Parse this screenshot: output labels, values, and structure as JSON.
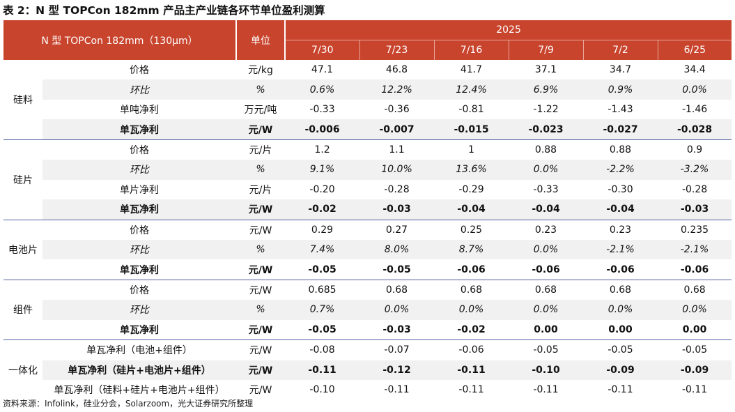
{
  "title": "表 2：N 型 TOPCon 182mm 产品主产业链各环节单位盈利测算",
  "header": {
    "item_label": "N 型 TOPCon 182mm（130μm）",
    "unit_label": "单位",
    "year": "2025",
    "dates": [
      "7/30",
      "7/23",
      "7/16",
      "7/9",
      "7/2",
      "6/25"
    ]
  },
  "groups": [
    {
      "name": "硅料",
      "rows": [
        {
          "metric": "价格",
          "unit": "元/kg",
          "values": [
            "47.1",
            "46.8",
            "41.7",
            "37.1",
            "34.7",
            "34.4"
          ],
          "style": "normal"
        },
        {
          "metric": "环比",
          "unit": "%",
          "values": [
            "0.6%",
            "12.2%",
            "12.4%",
            "6.9%",
            "0.9%",
            "0.0%"
          ],
          "style": "italic"
        },
        {
          "metric": "单吨净利",
          "unit": "万元/吨",
          "values": [
            "-0.33",
            "-0.36",
            "-0.81",
            "-1.22",
            "-1.43",
            "-1.46"
          ],
          "style": "normal"
        },
        {
          "metric": "单瓦净利",
          "unit": "元/W",
          "values": [
            "-0.006",
            "-0.007",
            "-0.015",
            "-0.023",
            "-0.027",
            "-0.028"
          ],
          "style": "bold"
        }
      ]
    },
    {
      "name": "硅片",
      "rows": [
        {
          "metric": "价格",
          "unit": "元/片",
          "values": [
            "1.2",
            "1.1",
            "1",
            "0.88",
            "0.88",
            "0.9"
          ],
          "style": "normal"
        },
        {
          "metric": "环比",
          "unit": "%",
          "values": [
            "9.1%",
            "10.0%",
            "13.6%",
            "0.0%",
            "-2.2%",
            "-3.2%"
          ],
          "style": "italic"
        },
        {
          "metric": "单片净利",
          "unit": "元/片",
          "values": [
            "-0.20",
            "-0.28",
            "-0.29",
            "-0.33",
            "-0.30",
            "-0.28"
          ],
          "style": "normal"
        },
        {
          "metric": "单瓦净利",
          "unit": "元/W",
          "values": [
            "-0.02",
            "-0.03",
            "-0.04",
            "-0.04",
            "-0.04",
            "-0.03"
          ],
          "style": "bold"
        }
      ]
    },
    {
      "name": "电池片",
      "rows": [
        {
          "metric": "价格",
          "unit": "元/W",
          "values": [
            "0.29",
            "0.27",
            "0.25",
            "0.23",
            "0.23",
            "0.235"
          ],
          "style": "normal"
        },
        {
          "metric": "环比",
          "unit": "%",
          "values": [
            "7.4%",
            "8.0%",
            "8.7%",
            "0.0%",
            "-2.1%",
            "-2.1%"
          ],
          "style": "italic"
        },
        {
          "metric": "单瓦净利",
          "unit": "元/W",
          "values": [
            "-0.05",
            "-0.05",
            "-0.06",
            "-0.06",
            "-0.06",
            "-0.06"
          ],
          "style": "bold"
        }
      ]
    },
    {
      "name": "组件",
      "rows": [
        {
          "metric": "价格",
          "unit": "元/W",
          "values": [
            "0.685",
            "0.68",
            "0.68",
            "0.68",
            "0.68",
            "0.68"
          ],
          "style": "normal"
        },
        {
          "metric": "环比",
          "unit": "%",
          "values": [
            "0.7%",
            "0.0%",
            "0.0%",
            "0.0%",
            "0.0%",
            "0.0%"
          ],
          "style": "italic"
        },
        {
          "metric": "单瓦净利",
          "unit": "元/W",
          "values": [
            "-0.05",
            "-0.03",
            "-0.02",
            "0.00",
            "0.00",
            "0.00"
          ],
          "style": "bold"
        }
      ]
    },
    {
      "name": "一体化",
      "rows": [
        {
          "metric": "单瓦净利（电池+组件）",
          "unit": "元/W",
          "values": [
            "-0.08",
            "-0.07",
            "-0.06",
            "-0.05",
            "-0.05",
            "-0.05"
          ],
          "style": "normal"
        },
        {
          "metric": "单瓦净利（硅片+电池片+组件）",
          "unit": "元/W",
          "values": [
            "-0.11",
            "-0.12",
            "-0.11",
            "-0.10",
            "-0.09",
            "-0.09"
          ],
          "style": "bold"
        },
        {
          "metric": "单瓦净利（硅料+硅片+电池片+组件）",
          "unit": "元/W",
          "values": [
            "-0.10",
            "-0.11",
            "-0.11",
            "-0.11",
            "-0.11",
            "-0.11"
          ],
          "style": "normal"
        }
      ]
    }
  ],
  "source": "资料来源：Infolink，硅业分会，Solarzoom，光大证券研究所整理"
}
